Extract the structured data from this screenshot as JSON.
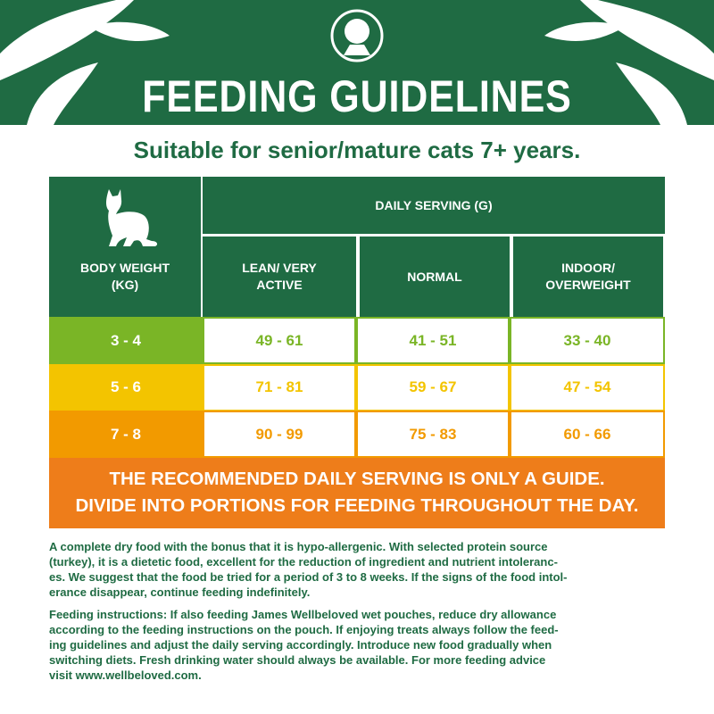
{
  "header": {
    "title": "FEEDING GUIDELINES",
    "subtitle": "Suitable for senior/mature cats 7+ years."
  },
  "table": {
    "corner_header": "BODY WEIGHT (KG)",
    "group_header": "DAILY SERVING (G)",
    "columns": [
      "LEAN/ VERY ACTIVE",
      "NORMAL",
      "INDOOR/ OVERWEIGHT"
    ],
    "rows": [
      [
        "3 - 4",
        "49 - 61",
        "41 - 51",
        "33 - 40"
      ],
      [
        "5 - 6",
        "71 - 81",
        "59 - 67",
        "47 - 54"
      ],
      [
        "7 - 8",
        "90 - 99",
        "75 - 83",
        "60 - 66"
      ]
    ]
  },
  "banner": [
    "THE RECOMMENDED DAILY SERVING IS ONLY A GUIDE.",
    "DIVIDE INTO PORTIONS FOR FEEDING THROUGHOUT THE DAY."
  ],
  "paragraphs": [
    [
      "A complete dry food with the bonus that it is hypo-allergenic. With selected protein source",
      "(turkey), it is a dietetic food, excellent for the reduction of ingredient and nutrient intoleranc-",
      "es. We suggest that the food be tried for a period of 3 to 8 weeks. If the signs of the food intol-",
      "erance disappear, continue feeding indefinitely."
    ],
    [
      "Feeding instructions: If also feeding James Wellbeloved wet pouches, reduce dry allowance",
      "according to the feeding instructions on the pouch. If enjoying treats always follow the feed-",
      "ing guidelines and adjust the daily serving accordingly. Introduce new food gradually when",
      "switching diets. Fresh drinking water should always be available. For more feeding advice",
      "visit www.wellbeloved.com."
    ]
  ]
}
